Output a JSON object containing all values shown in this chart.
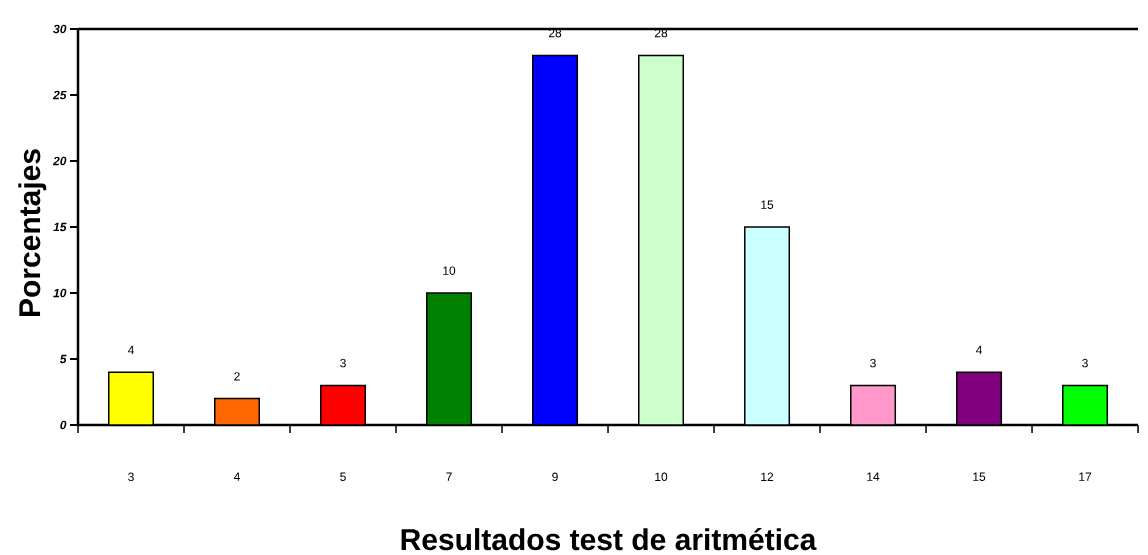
{
  "chart_data": {
    "type": "bar",
    "xlabel": "Resultados test de aritmética",
    "ylabel": "Porcentajes",
    "categories": [
      "3",
      "4",
      "5",
      "7",
      "9",
      "10",
      "12",
      "14",
      "15",
      "17"
    ],
    "values": [
      4,
      2,
      3,
      10,
      28,
      28,
      15,
      3,
      4,
      3
    ],
    "colors": [
      "#ffff00",
      "#ff6600",
      "#ff0000",
      "#008000",
      "#0000ff",
      "#ccffcc",
      "#ccffff",
      "#ff99cc",
      "#800080",
      "#00ff00"
    ],
    "ylim": [
      0,
      30
    ],
    "yticks": [
      0,
      5,
      10,
      15,
      20,
      25,
      30
    ],
    "data_labels": true
  }
}
